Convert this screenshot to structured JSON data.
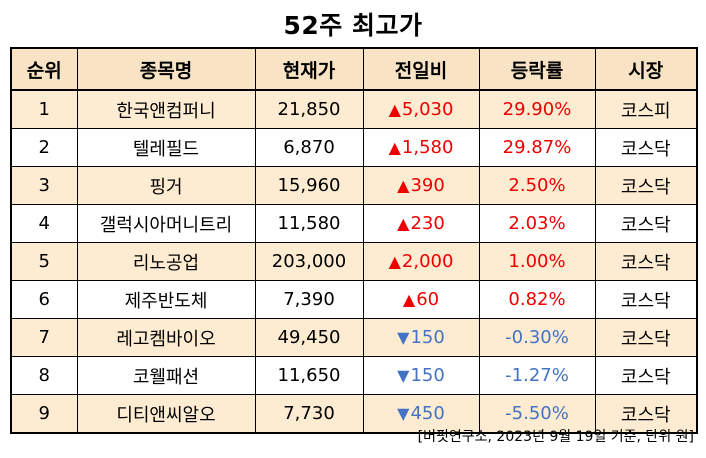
{
  "title": "52주 최고가",
  "headers": [
    "순위",
    "종목명",
    "현재가",
    "전일비",
    "등락률",
    "시장"
  ],
  "rows": [
    {
      "rank": "1",
      "name": "한국앤컴퍼니",
      "price": "21,850",
      "dir": "up",
      "arrow": "▲",
      "change": "5,030",
      "rate": "29.90%",
      "market": "코스피"
    },
    {
      "rank": "2",
      "name": "텔레필드",
      "price": "6,870",
      "dir": "up",
      "arrow": "▲",
      "change": "1,580",
      "rate": "29.87%",
      "market": "코스닥"
    },
    {
      "rank": "3",
      "name": "핑거",
      "price": "15,960",
      "dir": "up",
      "arrow": "▲",
      "change": "390",
      "rate": "2.50%",
      "market": "코스닥"
    },
    {
      "rank": "4",
      "name": "갤럭시아머니트리",
      "price": "11,580",
      "dir": "up",
      "arrow": "▲",
      "change": "230",
      "rate": "2.03%",
      "market": "코스닥"
    },
    {
      "rank": "5",
      "name": "리노공업",
      "price": "203,000",
      "dir": "up",
      "arrow": "▲",
      "change": "2,000",
      "rate": "1.00%",
      "market": "코스닥"
    },
    {
      "rank": "6",
      "name": "제주반도체",
      "price": "7,390",
      "dir": "up",
      "arrow": "▲",
      "change": "60",
      "rate": "0.82%",
      "market": "코스닥"
    },
    {
      "rank": "7",
      "name": "레고켐바이오",
      "price": "49,450",
      "dir": "down",
      "arrow": "▼",
      "change": "150",
      "rate": "-0.30%",
      "market": "코스닥"
    },
    {
      "rank": "8",
      "name": "코웰패션",
      "price": "11,650",
      "dir": "down",
      "arrow": "▼",
      "change": "150",
      "rate": "-1.27%",
      "market": "코스닥"
    },
    {
      "rank": "9",
      "name": "디티앤씨알오",
      "price": "7,730",
      "dir": "down",
      "arrow": "▼",
      "change": "450",
      "rate": "-5.50%",
      "market": "코스닥"
    }
  ],
  "source": "[버핏연구소, 2023년 9월 19일 기준, 단위 원]",
  "colors": {
    "up": "#ee0000",
    "down": "#4472c4",
    "row_shade": "#fdecd2",
    "header_bg": "#f8e4c4"
  }
}
